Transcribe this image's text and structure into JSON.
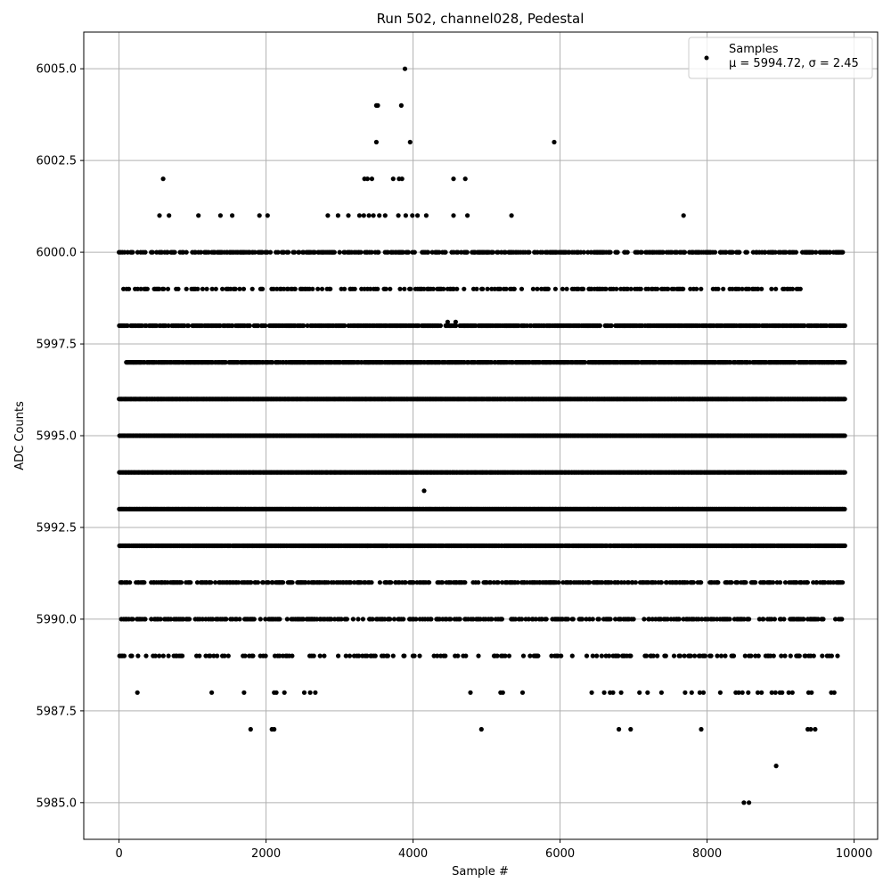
{
  "chart_data": {
    "type": "scatter",
    "title": "Run 502, channel028, Pedestal",
    "xlabel": "Sample #",
    "ylabel": "ADC Counts",
    "xlim": [
      -480,
      10320
    ],
    "ylim": [
      5984.0,
      6006.0
    ],
    "xticks": [
      0,
      2000,
      4000,
      6000,
      8000,
      10000
    ],
    "xtick_labels": [
      "0",
      "2000",
      "4000",
      "6000",
      "8000",
      "10000"
    ],
    "yticks": [
      5985.0,
      5987.5,
      5990.0,
      5992.5,
      5995.0,
      5997.5,
      6000.0,
      6002.5,
      6005.0
    ],
    "ytick_labels": [
      "5985.0",
      "5987.5",
      "5990.0",
      "5992.5",
      "5995.0",
      "5997.5",
      "6000.0",
      "6002.5",
      "6005.0"
    ],
    "grid": true,
    "legend_position": "top-right",
    "marker_color": "#000000",
    "grid_color": "#b0b0b0",
    "series": [
      {
        "name": "Samples",
        "stats_label": "μ = 5994.72, σ = 2.45",
        "points": [
          [
            3890,
            6005
          ],
          [
            3500,
            6004
          ],
          [
            3520,
            6004
          ],
          [
            3840,
            6004
          ],
          [
            3500,
            6003
          ],
          [
            3960,
            6003
          ],
          [
            5920,
            6003
          ],
          [
            600,
            6002
          ],
          [
            3340,
            6002
          ],
          [
            3380,
            6002
          ],
          [
            3440,
            6002
          ],
          [
            3730,
            6002
          ],
          [
            3810,
            6002
          ],
          [
            3850,
            6002
          ],
          [
            4550,
            6002
          ],
          [
            4710,
            6002
          ],
          [
            550,
            6001
          ],
          [
            680,
            6001
          ],
          [
            1080,
            6001
          ],
          [
            1380,
            6001
          ],
          [
            1540,
            6001
          ],
          [
            1910,
            6001
          ],
          [
            2020,
            6001
          ],
          [
            2840,
            6001
          ],
          [
            2980,
            6001
          ],
          [
            3120,
            6001
          ],
          [
            3270,
            6001
          ],
          [
            3330,
            6001
          ],
          [
            3400,
            6001
          ],
          [
            3460,
            6001
          ],
          [
            3540,
            6001
          ],
          [
            3620,
            6001
          ],
          [
            3800,
            6001
          ],
          [
            3900,
            6001
          ],
          [
            3990,
            6001
          ],
          [
            4060,
            6001
          ],
          [
            4180,
            6001
          ],
          [
            4550,
            6001
          ],
          [
            4740,
            6001
          ],
          [
            5340,
            6001
          ],
          [
            7680,
            6001
          ],
          [
            4470,
            5998.1
          ],
          [
            4580,
            5998.1
          ],
          [
            4150,
            5993.5
          ],
          [
            3380,
            5992
          ],
          [
            3960,
            5992
          ],
          [
            3670,
            5990
          ],
          [
            250,
            5988
          ],
          [
            1260,
            5988
          ],
          [
            1700,
            5988
          ],
          [
            2110,
            5988
          ],
          [
            2140,
            5988
          ],
          [
            2250,
            5988
          ],
          [
            2520,
            5988
          ],
          [
            2600,
            5988
          ],
          [
            2670,
            5988
          ],
          [
            4780,
            5988
          ],
          [
            5190,
            5988
          ],
          [
            5220,
            5988
          ],
          [
            5490,
            5988
          ],
          [
            6430,
            5988
          ],
          [
            6600,
            5988
          ],
          [
            6680,
            5988
          ],
          [
            6720,
            5988
          ],
          [
            6830,
            5988
          ],
          [
            7080,
            5988
          ],
          [
            7190,
            5988
          ],
          [
            7380,
            5988
          ],
          [
            7700,
            5988
          ],
          [
            7790,
            5988
          ],
          [
            7900,
            5988
          ],
          [
            7950,
            5988
          ],
          [
            8180,
            5988
          ],
          [
            8390,
            5988
          ],
          [
            8430,
            5988
          ],
          [
            8480,
            5988
          ],
          [
            8560,
            5988
          ],
          [
            8690,
            5988
          ],
          [
            8740,
            5988
          ],
          [
            8880,
            5988
          ],
          [
            8930,
            5988
          ],
          [
            8990,
            5988
          ],
          [
            9020,
            5988
          ],
          [
            9110,
            5988
          ],
          [
            9160,
            5988
          ],
          [
            9380,
            5988
          ],
          [
            9420,
            5988
          ],
          [
            9690,
            5988
          ],
          [
            9730,
            5988
          ],
          [
            1790,
            5987
          ],
          [
            2080,
            5987
          ],
          [
            2110,
            5987
          ],
          [
            4930,
            5987
          ],
          [
            6800,
            5987
          ],
          [
            6960,
            5987
          ],
          [
            7920,
            5987
          ],
          [
            9370,
            5987
          ],
          [
            9410,
            5987
          ],
          [
            9470,
            5987
          ],
          [
            8940,
            5986
          ],
          [
            8500,
            5985
          ],
          [
            8570,
            5985
          ]
        ],
        "dense_rows": [
          {
            "y": 6000,
            "density": 0.55,
            "ranges": [
              [
                0,
                5000
              ],
              [
                5000,
                6800
              ],
              [
                6800,
                9900
              ]
            ]
          },
          {
            "y": 5999,
            "density": 0.35,
            "ranges": [
              [
                0,
                9300
              ]
            ]
          },
          {
            "y": 5998,
            "density": 0.8,
            "ranges": [
              [
                0,
                9870
              ]
            ]
          },
          {
            "y": 5997,
            "density": 0.9,
            "ranges": [
              [
                80,
                9870
              ]
            ]
          },
          {
            "y": 5996,
            "density": 1.0,
            "ranges": [
              [
                0,
                9870
              ]
            ]
          },
          {
            "y": 5995,
            "density": 1.0,
            "ranges": [
              [
                0,
                9870
              ]
            ]
          },
          {
            "y": 5994,
            "density": 1.0,
            "ranges": [
              [
                0,
                9870
              ]
            ]
          },
          {
            "y": 5993,
            "density": 1.0,
            "ranges": [
              [
                0,
                9870
              ]
            ]
          },
          {
            "y": 5992,
            "density": 0.95,
            "ranges": [
              [
                0,
                9870
              ]
            ]
          },
          {
            "y": 5991,
            "density": 0.55,
            "ranges": [
              [
                0,
                9870
              ]
            ]
          },
          {
            "y": 5990,
            "density": 0.45,
            "ranges": [
              [
                0,
                9870
              ]
            ]
          },
          {
            "y": 5989,
            "density": 0.25,
            "ranges": [
              [
                0,
                9800
              ]
            ]
          }
        ]
      }
    ]
  }
}
